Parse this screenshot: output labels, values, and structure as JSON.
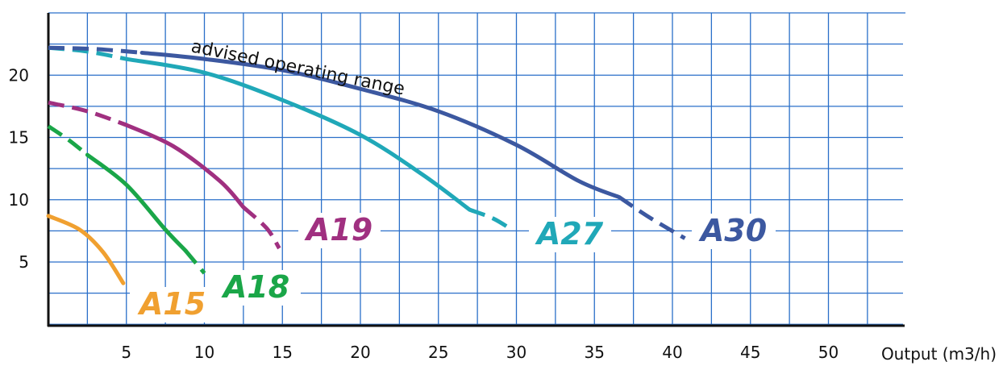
{
  "chart_data": {
    "type": "line",
    "title": "",
    "xlabel": "Output (m3/h)",
    "ylabel": "",
    "xlim": [
      0,
      55
    ],
    "ylim": [
      -4.5,
      27
    ],
    "x_ticks": [
      5,
      10,
      15,
      20,
      25,
      30,
      35,
      40,
      45,
      50
    ],
    "x_tick_labels": [
      "5",
      "10",
      "15",
      "20",
      "25",
      "30",
      "35",
      "40",
      "45",
      "50"
    ],
    "y_ticks": [
      5,
      10,
      15,
      20
    ],
    "y_tick_labels": [
      "5",
      "10",
      "15",
      "20"
    ],
    "grid": true,
    "annotation": "advised operating range",
    "series": [
      {
        "name": "A15",
        "color": "#f0a030",
        "solid": [
          [
            0,
            8.7
          ],
          [
            2,
            7.6
          ],
          [
            3.5,
            5.8
          ],
          [
            4.8,
            3.3
          ]
        ],
        "dashed": []
      },
      {
        "name": "A18",
        "color": "#1aa648",
        "solid": [
          [
            2.5,
            13.6
          ],
          [
            5,
            11.2
          ],
          [
            7.5,
            7.6
          ],
          [
            8.8,
            5.9
          ]
        ],
        "dashed": [
          [
            0,
            15.9
          ],
          [
            1.3,
            14.8
          ],
          [
            2.5,
            13.6
          ],
          [
            8.8,
            5.9
          ],
          [
            10,
            4.1
          ]
        ]
      },
      {
        "name": "A19",
        "color": "#a03080",
        "solid": [
          [
            5,
            16
          ],
          [
            8,
            14.3
          ],
          [
            11,
            11.5
          ],
          [
            12.5,
            9.4
          ]
        ],
        "dashed": [
          [
            0,
            17.8
          ],
          [
            2.5,
            17.1
          ],
          [
            5,
            16
          ],
          [
            12.5,
            9.4
          ],
          [
            14,
            7.7
          ],
          [
            14.8,
            6.1
          ]
        ]
      },
      {
        "name": "A27",
        "color": "#20a8b8",
        "solid": [
          [
            5,
            21.3
          ],
          [
            10,
            20.2
          ],
          [
            15,
            18
          ],
          [
            20,
            15.2
          ],
          [
            24,
            12
          ],
          [
            27,
            9.2
          ]
        ],
        "dashed": [
          [
            0,
            22.2
          ],
          [
            2.5,
            21.9
          ],
          [
            5,
            21.3
          ],
          [
            27,
            9.2
          ],
          [
            28.5,
            8.5
          ],
          [
            29.7,
            7.6
          ]
        ]
      },
      {
        "name": "A30",
        "color": "#3c58a0",
        "solid": [
          [
            6,
            21.8
          ],
          [
            10,
            21.3
          ],
          [
            15,
            20.4
          ],
          [
            20,
            18.9
          ],
          [
            25,
            17.1
          ],
          [
            30,
            14.4
          ],
          [
            34,
            11.5
          ],
          [
            36.6,
            10.2
          ]
        ],
        "dashed": [
          [
            0,
            22.2
          ],
          [
            3,
            22.1
          ],
          [
            6,
            21.8
          ],
          [
            36.6,
            10.2
          ],
          [
            38.5,
            8.6
          ],
          [
            40.8,
            6.9
          ]
        ]
      }
    ]
  }
}
